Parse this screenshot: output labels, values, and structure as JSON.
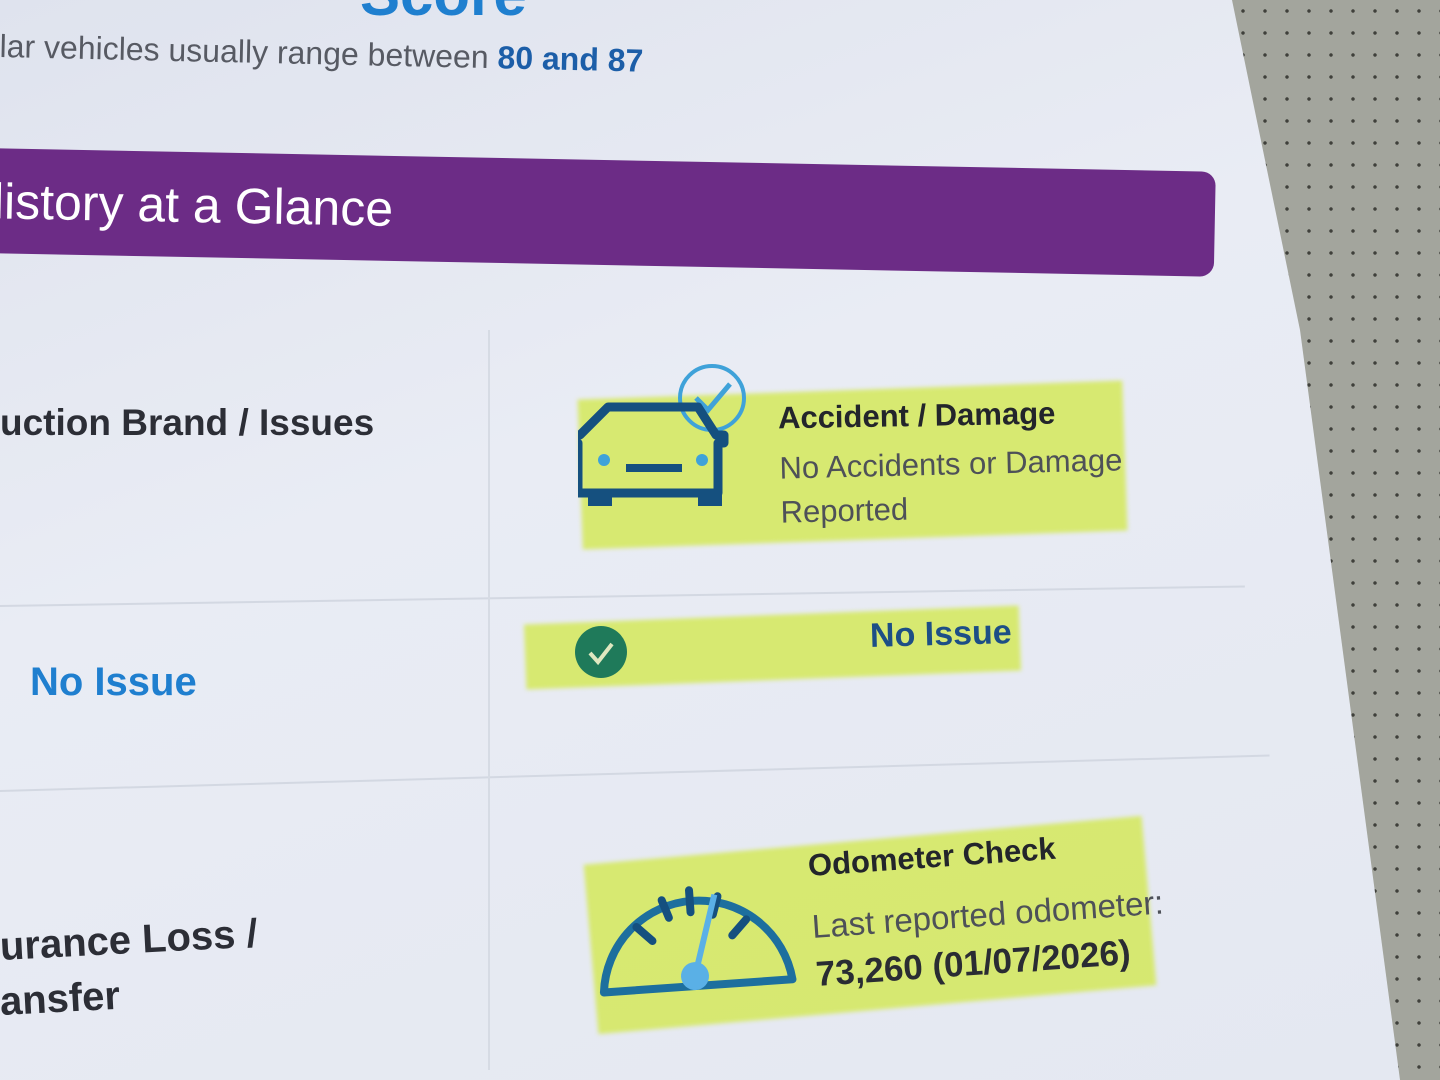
{
  "score_section": {
    "heading_partial": "Score",
    "range_text": "lar vehicles usually range between",
    "range_value": "80 and 87"
  },
  "banner": {
    "title": "listory at a Glance",
    "color": "#6c2c86"
  },
  "rows": [
    {
      "label": "uction Brand / Issues",
      "icon": "car-check-icon",
      "title": "Accident / Damage",
      "detail": "No Accidents or Damage Reported"
    },
    {
      "label": "No Issue",
      "icon": "check-circle-icon",
      "status": "No Issue"
    },
    {
      "label_line1": "urance Loss /",
      "label_line2": "ansfer",
      "icon": "speedometer-icon",
      "title": "Odometer Check",
      "detail": "Last reported odometer:",
      "value": "73,260 (01/07/2026)"
    }
  ],
  "colors": {
    "accent_blue": "#1f7fcf",
    "highlight": "#d2e846",
    "check_green": "#1f7a5a"
  }
}
